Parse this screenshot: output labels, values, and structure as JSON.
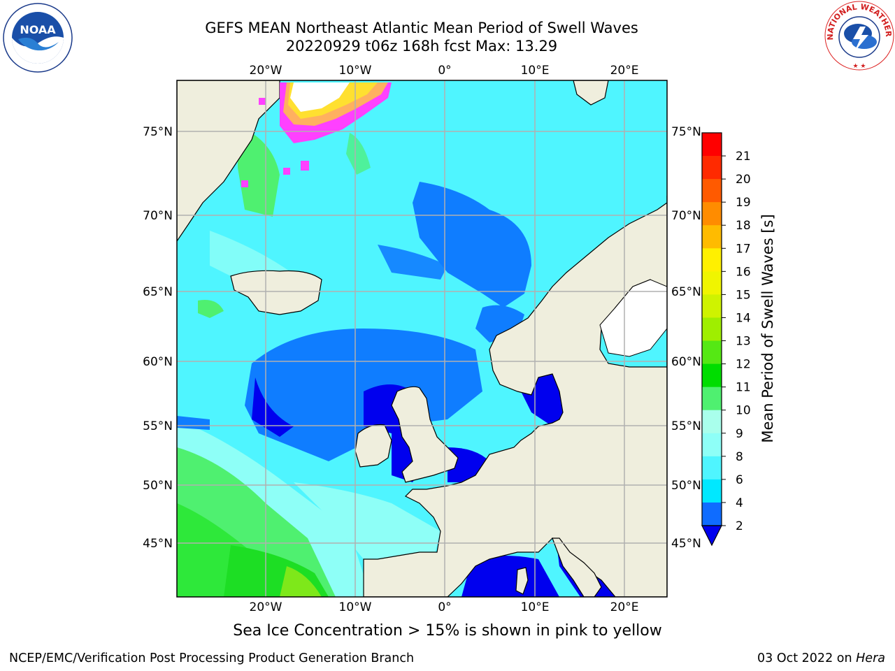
{
  "title": {
    "line1": "GEFS MEAN Northeast Atlantic Mean Period of Swell Waves",
    "line2": "20220929 t06z 168h fcst   Max: 13.29"
  },
  "logos": {
    "noaa": {
      "text": "NOAA",
      "ring_text": "NATIONAL OCEANIC AND ATMOSPHERIC ADMINISTRATION · U.S. DEPARTMENT OF COMMERCE"
    },
    "nws": {
      "ring_text": "NATIONAL WEATHER SERVICE"
    }
  },
  "map": {
    "lon_ticks": [
      "20°W",
      "10°W",
      "0°",
      "10°E",
      "20°E"
    ],
    "lat_ticks": [
      "75°N",
      "70°N",
      "65°N",
      "60°N",
      "55°N",
      "50°N",
      "45°N"
    ],
    "colors": {
      "ocean_cyan": "#4ff5ff",
      "ocean_light": "#8efff7",
      "ocean_blue": "#0f7dff",
      "deep_blue": "#0000ee",
      "land": "#efeedd",
      "green": "#4ff070",
      "bright_green": "#1dde24",
      "ice_pink": "#ff40ff",
      "ice_yellow": "#ffe030",
      "gridline": "#b0b0b0"
    }
  },
  "colorbar": {
    "label": "Mean Period of Swell Waves [s]",
    "ticks": [
      "2",
      "4",
      "6",
      "8",
      "9",
      "10",
      "11",
      "12",
      "13",
      "14",
      "15",
      "16",
      "17",
      "18",
      "19",
      "20",
      "21"
    ],
    "colors": [
      "#0f6cff",
      "#00e8ff",
      "#4ff5ff",
      "#8efff7",
      "#a9ffec",
      "#4ff070",
      "#00dd00",
      "#55e814",
      "#9fee00",
      "#cff300",
      "#f0f500",
      "#fff000",
      "#ffbb00",
      "#ff8c00",
      "#ff5a00",
      "#ff2a00",
      "#ff0000"
    ],
    "under_color": "#0000ee"
  },
  "ice_note": "Sea Ice Concentration > 15% is shown in pink to yellow",
  "footer": {
    "left": "NCEP/EMC/Verification Post Processing Product Generation Branch",
    "right_date": "03 Oct 2022 on ",
    "right_host": "Hera"
  }
}
